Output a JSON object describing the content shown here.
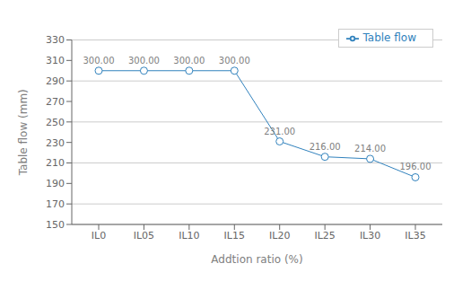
{
  "chart_data": {
    "type": "line",
    "categories": [
      "IL0",
      "IL05",
      "IL10",
      "IL15",
      "IL20",
      "IL25",
      "IL30",
      "IL35"
    ],
    "series": [
      {
        "name": "Table flow",
        "values": [
          300.0,
          300.0,
          300.0,
          300.0,
          231.0,
          216.0,
          214.0,
          196.0
        ],
        "value_labels": [
          "300.00",
          "300.00",
          "300.00",
          "300.00",
          "231.00",
          "216.00",
          "214.00",
          "196.00"
        ],
        "marker": "circle"
      }
    ],
    "xlabel": "Addtion ratio (%)",
    "ylabel": "Table flow (mm)",
    "ylim": [
      150,
      330
    ],
    "yticks": [
      150,
      170,
      190,
      210,
      230,
      250,
      270,
      290,
      310,
      330
    ],
    "grid": "y",
    "legend": "upper right",
    "data_labels": true
  }
}
